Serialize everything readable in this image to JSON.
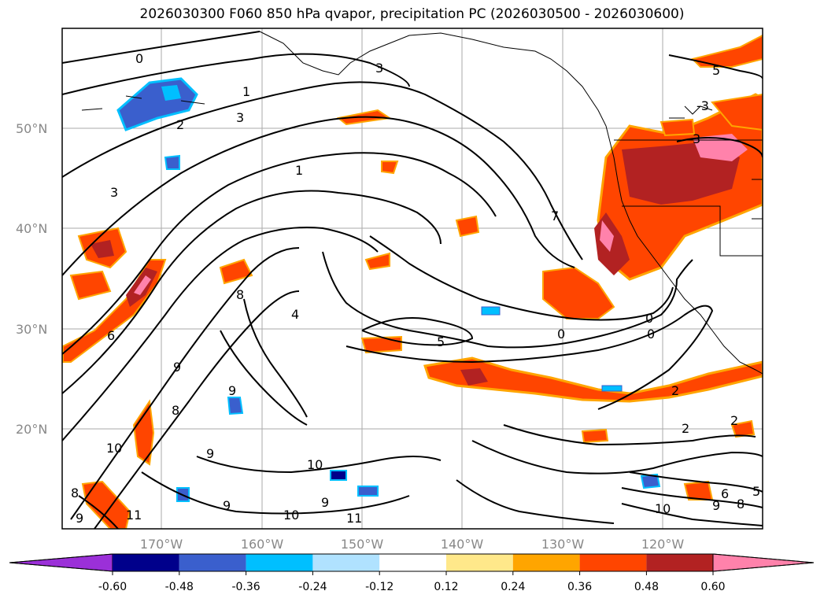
{
  "title": "2026030300 F060 850 hPa qvapor, precipitation PC (2026030500 - 2026030600)",
  "lat_labels": [
    "50°N",
    "40°N",
    "30°N",
    "20°N"
  ],
  "lon_labels": [
    "170°W",
    "160°W",
    "150°W",
    "140°W",
    "130°W",
    "120°W"
  ],
  "colorbar": {
    "tick_labels": [
      "-0.60",
      "-0.48",
      "-0.36",
      "-0.24",
      "-0.12",
      "0.12",
      "0.24",
      "0.36",
      "0.48",
      "0.60"
    ],
    "colors": [
      "#9b30d8",
      "#00008b",
      "#3a5fcd",
      "#00bfff",
      "#b0e2ff",
      "#ffffff",
      "#ffe88a",
      "#ffa500",
      "#ff4500",
      "#b22222",
      "#ff82ab"
    ]
  },
  "contour_labels": [
    "0",
    "1",
    "2",
    "3",
    "3",
    "3",
    "1",
    "-3",
    "5",
    "3",
    "7",
    "8",
    "4",
    "5",
    "6",
    "0",
    "0",
    "0",
    "9",
    "9",
    "9",
    "8",
    "9",
    "10",
    "10",
    "10",
    "9",
    "11",
    "10",
    "2",
    "2",
    "2",
    "8",
    "9",
    "6",
    "5",
    "11",
    "9",
    "8"
  ],
  "icons": {
    "colorbar_left": "triangle-left",
    "colorbar_right": "triangle-right"
  }
}
